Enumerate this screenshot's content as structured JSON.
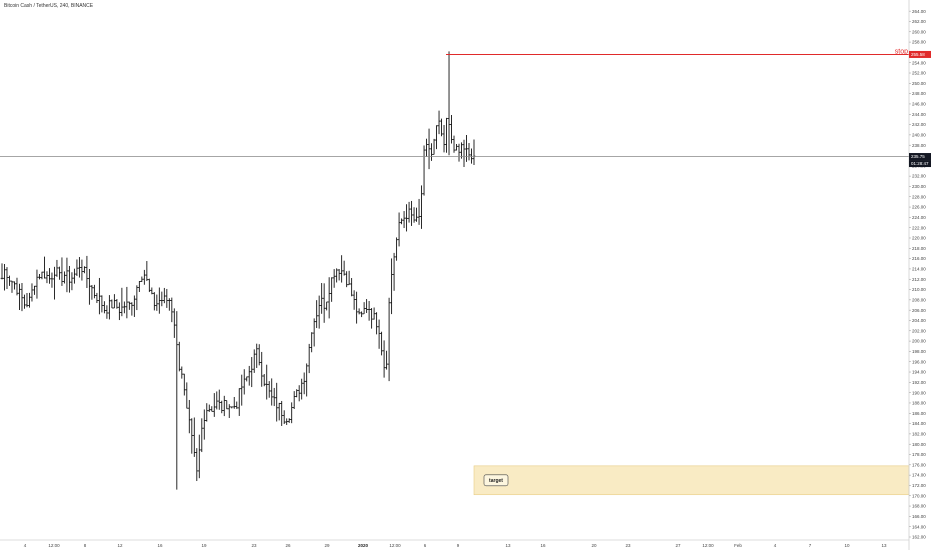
{
  "header": {
    "symbol": "Bitcoin Cash / TetherUS, 240, BINANCE"
  },
  "colors": {
    "bars": "#111111",
    "stop_line": "#e02a2a",
    "stop_badge": "#e02a2a",
    "target_zone": "#f9ebc4",
    "target_border": "#e8cd86",
    "price_line": "#888888",
    "price_badge": "#131722",
    "axis": "#d0d0d0"
  },
  "chart_data": {
    "type": "ohlc",
    "y_axis": {
      "min": 162,
      "max": 265,
      "ticks": [
        "264.00",
        "262.00",
        "260.00",
        "258.00",
        "256.00",
        "254.00",
        "252.00",
        "250.00",
        "248.00",
        "246.00",
        "244.00",
        "242.00",
        "240.00",
        "238.00",
        "236.00",
        "234.00",
        "232.00",
        "230.00",
        "228.00",
        "226.00",
        "224.00",
        "222.00",
        "220.00",
        "218.00",
        "216.00",
        "214.00",
        "212.00",
        "210.00",
        "208.00",
        "206.00",
        "204.00",
        "202.00",
        "200.00",
        "198.00",
        "196.00",
        "194.00",
        "192.00",
        "190.00",
        "188.00",
        "186.00",
        "184.00",
        "182.00",
        "180.00",
        "178.00",
        "176.00",
        "174.00",
        "172.00",
        "170.00",
        "168.00",
        "166.00",
        "164.00",
        "162.00"
      ]
    },
    "x_axis": {
      "ticks": [
        {
          "label": "4",
          "pos": 25
        },
        {
          "label": "12:00",
          "pos": 54
        },
        {
          "label": "8",
          "pos": 85
        },
        {
          "label": "12",
          "pos": 120
        },
        {
          "label": "16",
          "pos": 160
        },
        {
          "label": "19",
          "pos": 204
        },
        {
          "label": "23",
          "pos": 254
        },
        {
          "label": "26",
          "pos": 288
        },
        {
          "label": "29",
          "pos": 327
        },
        {
          "label": "2020",
          "pos": 363,
          "bold": true
        },
        {
          "label": "12:00",
          "pos": 395
        },
        {
          "label": "6",
          "pos": 425
        },
        {
          "label": "9",
          "pos": 458
        },
        {
          "label": "13",
          "pos": 508
        },
        {
          "label": "16",
          "pos": 543
        },
        {
          "label": "20",
          "pos": 594
        },
        {
          "label": "23",
          "pos": 628
        },
        {
          "label": "27",
          "pos": 678
        },
        {
          "label": "12:00",
          "pos": 708
        },
        {
          "label": "Feb",
          "pos": 738
        },
        {
          "label": "4",
          "pos": 775
        },
        {
          "label": "7",
          "pos": 810
        },
        {
          "label": "10",
          "pos": 847
        },
        {
          "label": "13",
          "pos": 884
        }
      ]
    },
    "bars_n": 190,
    "anchors": [
      [
        0,
        211
      ],
      [
        5,
        214
      ],
      [
        10,
        212
      ],
      [
        15,
        211
      ],
      [
        20,
        209
      ],
      [
        25,
        207
      ],
      [
        30,
        208
      ],
      [
        35,
        212
      ],
      [
        40,
        213
      ],
      [
        45,
        213
      ],
      [
        50,
        212
      ],
      [
        55,
        214
      ],
      [
        60,
        212
      ],
      [
        65,
        213
      ],
      [
        70,
        212
      ],
      [
        75,
        213
      ],
      [
        80,
        215
      ],
      [
        85,
        213
      ],
      [
        90,
        211
      ],
      [
        95,
        209
      ],
      [
        100,
        208
      ],
      [
        105,
        206
      ],
      [
        110,
        207
      ],
      [
        115,
        207
      ],
      [
        120,
        206
      ],
      [
        125,
        207
      ],
      [
        130,
        207
      ],
      [
        135,
        209
      ],
      [
        140,
        213
      ],
      [
        145,
        213
      ],
      [
        150,
        209
      ],
      [
        155,
        207
      ],
      [
        160,
        208
      ],
      [
        165,
        208
      ],
      [
        170,
        208
      ],
      [
        175,
        203
      ],
      [
        178,
        196
      ],
      [
        182,
        194
      ],
      [
        186,
        187
      ],
      [
        190,
        183
      ],
      [
        194,
        178
      ],
      [
        197,
        174
      ],
      [
        200,
        180
      ],
      [
        203,
        185
      ],
      [
        207,
        187
      ],
      [
        212,
        187
      ],
      [
        217,
        188
      ],
      [
        222,
        187
      ],
      [
        227,
        188
      ],
      [
        232,
        187
      ],
      [
        237,
        188
      ],
      [
        241,
        191
      ],
      [
        245,
        192
      ],
      [
        249,
        194
      ],
      [
        253,
        196
      ],
      [
        256,
        198
      ],
      [
        260,
        196
      ],
      [
        263,
        193
      ],
      [
        267,
        191
      ],
      [
        271,
        189
      ],
      [
        275,
        188
      ],
      [
        280,
        187
      ],
      [
        285,
        185
      ],
      [
        290,
        186
      ],
      [
        295,
        189
      ],
      [
        300,
        191
      ],
      [
        304,
        193
      ],
      [
        308,
        197
      ],
      [
        312,
        203
      ],
      [
        316,
        205
      ],
      [
        320,
        208
      ],
      [
        325,
        207
      ],
      [
        330,
        211
      ],
      [
        335,
        214
      ],
      [
        340,
        214
      ],
      [
        345,
        213
      ],
      [
        350,
        210
      ],
      [
        355,
        207
      ],
      [
        360,
        204
      ],
      [
        364,
        206
      ],
      [
        368,
        207
      ],
      [
        372,
        205
      ],
      [
        376,
        204
      ],
      [
        380,
        202
      ],
      [
        383,
        196
      ],
      [
        386,
        194
      ],
      [
        389,
        207
      ],
      [
        392,
        214
      ],
      [
        396,
        219
      ],
      [
        400,
        223
      ],
      [
        404,
        224
      ],
      [
        408,
        225
      ],
      [
        412,
        224
      ],
      [
        416,
        223
      ],
      [
        420,
        224
      ],
      [
        424,
        236
      ],
      [
        428,
        238
      ],
      [
        432,
        236
      ],
      [
        436,
        241
      ],
      [
        440,
        242
      ],
      [
        444,
        237
      ],
      [
        447,
        244
      ],
      [
        450,
        240
      ],
      [
        454,
        238
      ],
      [
        458,
        236
      ],
      [
        462,
        238
      ],
      [
        466,
        237
      ],
      [
        470,
        235
      ],
      [
        474,
        236
      ]
    ],
    "last_bar_x": 474,
    "first_bar_x": 2,
    "price_line": 235.8,
    "stop": {
      "label": "stop",
      "price": 255.6,
      "badge": "255.58",
      "x_start": 446
    },
    "last_price_badge": "235.75",
    "countdown_badge": "01:28:47",
    "target_zone": {
      "label": "target",
      "from": 170.2,
      "to": 175.8,
      "x_start": 474
    }
  }
}
